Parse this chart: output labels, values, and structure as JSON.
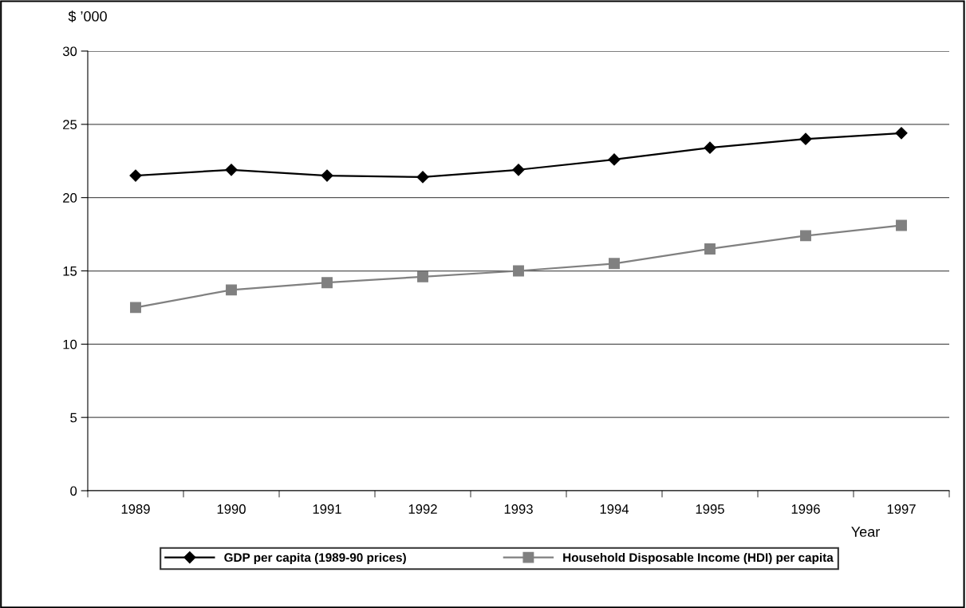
{
  "chart_data": {
    "type": "line",
    "ylabel": "$ ’000",
    "xlabel": "Year",
    "categories": [
      "1989",
      "1990",
      "1991",
      "1992",
      "1993",
      "1994",
      "1995",
      "1996",
      "1997"
    ],
    "series": [
      {
        "name": "GDP per capita (1989-90 prices)",
        "color": "#000000",
        "marker": "diamond",
        "values": [
          21.5,
          21.9,
          21.5,
          21.4,
          21.9,
          22.6,
          23.4,
          24.0,
          24.4
        ]
      },
      {
        "name": "Household Disposable Income (HDI) per capita",
        "color": "#808080",
        "marker": "square",
        "values": [
          12.5,
          13.7,
          14.2,
          14.6,
          15.0,
          15.5,
          16.5,
          17.4,
          18.1
        ]
      }
    ],
    "ylim": [
      0,
      30
    ],
    "yticks": [
      0,
      5,
      10,
      15,
      20,
      25,
      30
    ],
    "grid": "y",
    "legend": "bottom"
  }
}
